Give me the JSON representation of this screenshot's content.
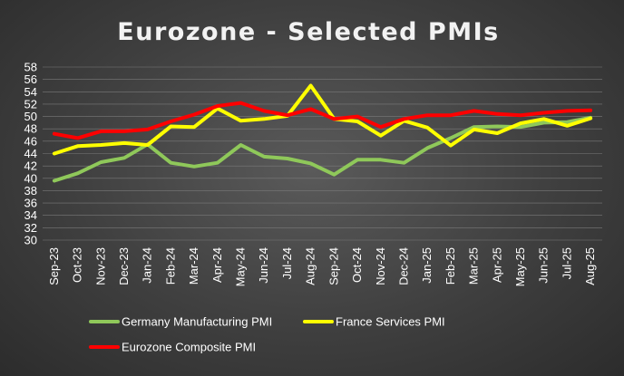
{
  "chart_data": {
    "type": "line",
    "title": "Eurozone - Selected PMIs",
    "xlabel": "",
    "ylabel": "",
    "ylim": [
      30,
      58
    ],
    "yticks": [
      30,
      32,
      34,
      36,
      38,
      40,
      42,
      44,
      46,
      48,
      50,
      52,
      54,
      56,
      58
    ],
    "grid": true,
    "legend_position": "bottom",
    "categories": [
      "Sep-23",
      "Oct-23",
      "Nov-23",
      "Dec-23",
      "Jan-24",
      "Feb-24",
      "Mar-24",
      "Apr-24",
      "May-24",
      "Jun-24",
      "Jul-24",
      "Aug-24",
      "Sep-24",
      "Oct-24",
      "Nov-24",
      "Dec-24",
      "Jan-25",
      "Feb-25",
      "Mar-25",
      "Apr-25",
      "May-25",
      "Jun-25",
      "Jul-25",
      "Aug-25"
    ],
    "series": [
      {
        "name": "Germany Manufacturing PMI",
        "color": "#8fc85a",
        "values": [
          39.6,
          40.8,
          42.6,
          43.3,
          45.5,
          42.5,
          41.9,
          42.5,
          45.4,
          43.5,
          43.2,
          42.4,
          40.6,
          43.0,
          43.0,
          42.5,
          44.9,
          46.5,
          48.3,
          48.4,
          48.3,
          49.0,
          49.1,
          49.8
        ]
      },
      {
        "name": "France Services PMI",
        "color": "#ffff00",
        "values": [
          44.0,
          45.2,
          45.4,
          45.7,
          45.4,
          48.4,
          48.3,
          51.3,
          49.3,
          49.6,
          50.1,
          55.0,
          49.6,
          49.2,
          46.9,
          49.3,
          48.2,
          45.3,
          47.9,
          47.3,
          48.9,
          49.6,
          48.5,
          49.7
        ]
      },
      {
        "name": "Eurozone Composite PMI",
        "color": "#ff0000",
        "values": [
          47.2,
          46.5,
          47.6,
          47.6,
          47.9,
          49.2,
          50.3,
          51.7,
          52.2,
          50.9,
          50.2,
          51.2,
          49.6,
          50.0,
          48.3,
          49.6,
          50.2,
          50.2,
          50.9,
          50.4,
          50.2,
          50.6,
          50.9,
          51.0
        ]
      }
    ]
  }
}
